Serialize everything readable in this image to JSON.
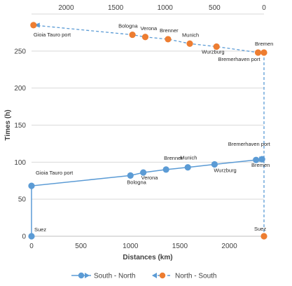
{
  "chart_data": {
    "type": "scatter",
    "xlabel": "Distances (km)",
    "ylabel": "Times (h)",
    "xlim": [
      0,
      2350
    ],
    "ylim": [
      0,
      300
    ],
    "x_ticks": [
      0,
      500,
      1000,
      1500,
      2000
    ],
    "y_ticks": [
      0,
      50,
      100,
      150,
      200,
      250
    ],
    "top_axis": {
      "reversed": true,
      "ticks": [
        2000,
        1500,
        1000,
        500,
        0
      ]
    },
    "grid": "horizontal",
    "legend_position": "bottom",
    "colors": {
      "south_north": "#5b9bd5",
      "north_south": "#ed7d31"
    },
    "series": [
      {
        "name": "South - North",
        "axis": "bottom",
        "points": [
          {
            "label": "Suez",
            "x": 0,
            "y": 0
          },
          {
            "label": "Gioia Tauro port",
            "x": 0,
            "y": 68
          },
          {
            "label": "Bologna",
            "x": 1000,
            "y": 82
          },
          {
            "label": "Verona",
            "x": 1130,
            "y": 86
          },
          {
            "label": "Brenner",
            "x": 1360,
            "y": 90
          },
          {
            "label": "Munich",
            "x": 1580,
            "y": 93
          },
          {
            "label": "Wurzburg",
            "x": 1850,
            "y": 97
          },
          {
            "label": "Bremerhaven port",
            "x": 2270,
            "y": 103
          },
          {
            "label": "Bremen",
            "x": 2330,
            "y": 104
          }
        ]
      },
      {
        "name": "North - South",
        "axis": "top",
        "points": [
          {
            "label": "Bremen",
            "x": 0,
            "y": 248
          },
          {
            "label": "Bremerhaven port",
            "x": 60,
            "y": 248
          },
          {
            "label": "Wurzburg",
            "x": 480,
            "y": 256
          },
          {
            "label": "Munich",
            "x": 750,
            "y": 260
          },
          {
            "label": "Brenner",
            "x": 970,
            "y": 266
          },
          {
            "label": "Verona",
            "x": 1200,
            "y": 269
          },
          {
            "label": "Bologna",
            "x": 1330,
            "y": 272
          },
          {
            "label": "Gioia Tauro port",
            "x": 2330,
            "y": 285
          },
          {
            "label": "Suez",
            "x": 0,
            "y": 0
          }
        ]
      }
    ]
  }
}
